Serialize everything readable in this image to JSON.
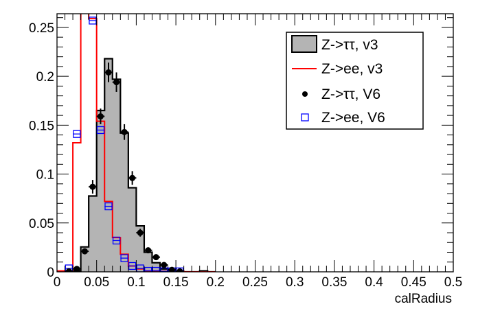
{
  "chart_data": {
    "type": "bar",
    "title": "",
    "xlabel": "calRadius",
    "ylabel": "",
    "xlim": [
      0,
      0.5
    ],
    "ylim": [
      0,
      0.264
    ],
    "bin_width": 0.01,
    "x_ticks": [
      "0",
      "0.05",
      "0.1",
      "0.15",
      "0.2",
      "0.25",
      "0.3",
      "0.35",
      "0.4",
      "0.45",
      "0.5"
    ],
    "y_ticks": [
      "0",
      "0.05",
      "0.1",
      "0.15",
      "0.2",
      "0.25"
    ],
    "legend_position": "top-right",
    "series": [
      {
        "name": "Z->ττ, v3",
        "style": "filled-histogram",
        "color": "#000000",
        "fill": "#b4b4b4",
        "bin_edges_start": 0,
        "values": [
          0,
          0.001,
          0.001,
          0.0255,
          0.0776,
          0.165,
          0.218,
          0.197,
          0.142,
          0.086,
          0.047,
          0.02,
          0.0093,
          0.003,
          0.0015,
          0.0005,
          0,
          0,
          0.001,
          0
        ]
      },
      {
        "name": "Z->ee, v3",
        "style": "line-histogram",
        "color": "#ff0000",
        "bin_edges_start": 0,
        "values": [
          0.001,
          0.001,
          0.132,
          0.3,
          0.259,
          0.154,
          0.072,
          0.035,
          0.018,
          0.006,
          0.003,
          0.001,
          0.001,
          0.0005,
          0.0005,
          0.0005,
          0,
          0,
          0,
          0
        ]
      },
      {
        "name": "Z->ττ, V6",
        "style": "points",
        "color": "#000000",
        "x": [
          0.015,
          0.025,
          0.035,
          0.045,
          0.055,
          0.065,
          0.075,
          0.085,
          0.095,
          0.105,
          0.115,
          0.125,
          0.135,
          0.145,
          0.155
        ],
        "y": [
          0.0005,
          0.003,
          0.021,
          0.087,
          0.159,
          0.204,
          0.194,
          0.143,
          0.096,
          0.04,
          0.022,
          0.015,
          0.007,
          0.002,
          0.0005
        ],
        "yerr": [
          0.001,
          0.002,
          0.003,
          0.007,
          0.008,
          0.01,
          0.01,
          0.008,
          0.007,
          0.004,
          0.003,
          0.003,
          0.002,
          0.001,
          0.001
        ]
      },
      {
        "name": "Z->ee, V6",
        "style": "open-squares",
        "color": "#0000ff",
        "x": [
          0.015,
          0.025,
          0.045,
          0.055,
          0.065,
          0.075,
          0.085,
          0.095,
          0.105,
          0.115,
          0.125,
          0.135,
          0.145,
          0.155
        ],
        "y": [
          0.0035,
          0.141,
          0.257,
          0.145,
          0.067,
          0.032,
          0.014,
          0.006,
          0.0035,
          0.001,
          0.001,
          0.0005,
          0.0005,
          0.0005
        ]
      }
    ]
  }
}
